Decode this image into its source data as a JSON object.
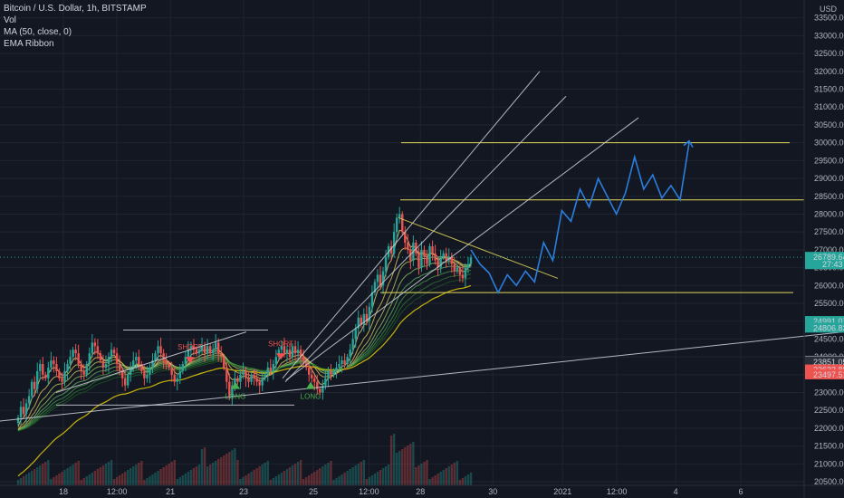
{
  "legend": {
    "symbol": "Bitcoin / U.S. Dollar, 1h, BITSTAMP",
    "volume": "Vol",
    "ma": "MA (50, close, 0)",
    "ribbon": "EMA Ribbon"
  },
  "currency": "USD",
  "chart_data": {
    "type": "candlestick",
    "title": "Bitcoin / U.S. Dollar, 1h, BITSTAMP",
    "ylim": [
      20400,
      34000
    ],
    "y_ticks": [
      20500,
      21000,
      21500,
      22000,
      22500,
      23000,
      23500,
      24000,
      24500,
      25000,
      25500,
      26000,
      26500,
      27000,
      27500,
      28000,
      28500,
      29000,
      29500,
      30000,
      30500,
      31000,
      31500,
      32000,
      32500,
      33000,
      33500
    ],
    "x_ticks": [
      "18",
      "12:00",
      "21",
      "23",
      "25",
      "12:00",
      "28",
      "30",
      "2021",
      "12:00",
      "4",
      "6"
    ],
    "current_price": 26789.64,
    "countdown": "27:43",
    "price_labels": [
      {
        "value": "24991.07",
        "price": 24991.07,
        "color": "#26a69a"
      },
      {
        "value": "24806.83",
        "price": 24806.83,
        "color": "#26a69a"
      },
      {
        "value": "23877.82",
        "price": 23877.82,
        "color": "#787b86"
      },
      {
        "value": "23851.05",
        "price": 23851.05,
        "color": "#2a2e39"
      },
      {
        "value": "23632.88",
        "price": 23632.88,
        "color": "#ef5350"
      },
      {
        "value": "23497.51",
        "price": 23497.51,
        "color": "#ef5350"
      }
    ],
    "horizontal_levels": [
      30000,
      28400,
      25800
    ],
    "projection": [
      27000,
      26600,
      26350,
      25800,
      26300,
      26000,
      26400,
      26100,
      27200,
      26700,
      28100,
      27800,
      28700,
      28200,
      29000,
      28500,
      28000,
      28600,
      29600,
      28700,
      29100,
      28450,
      28800,
      28400,
      30000
    ],
    "signals": [
      {
        "label": "SHORT",
        "color": "#ef5350"
      },
      {
        "label": "SHORT",
        "color": "#ef5350"
      },
      {
        "label": "LONG",
        "color": "#4caf50"
      },
      {
        "label": "LONG",
        "color": "#4caf50"
      }
    ],
    "series": [
      {
        "name": "BTC/USD",
        "values": [
          22300,
          22600,
          22400,
          22700,
          22900,
          23300,
          23100,
          23600,
          23800,
          23500,
          23400,
          23700,
          23900,
          23800,
          23600,
          23400,
          23300,
          23600,
          23800,
          24000,
          24200,
          24100,
          23800,
          23600,
          23500,
          23800,
          24100,
          24400,
          24300,
          24100,
          23900,
          23700,
          23800,
          24000,
          24200,
          24100,
          23800,
          23600,
          23400,
          23200,
          23500,
          23700,
          23900,
          24000,
          23800,
          23600,
          23400,
          23500,
          23700,
          23900,
          24100,
          24300,
          24100,
          23900,
          23800,
          23700,
          23500,
          23300,
          23400,
          23600,
          23800,
          24000,
          24200,
          24300,
          24200,
          24100,
          24200,
          24300,
          24100,
          24300,
          24100,
          24200,
          24400,
          24100,
          24000,
          23700,
          23300,
          22900,
          23200,
          23400,
          23300,
          23500,
          23600,
          23400,
          23300,
          23500,
          23400,
          23300,
          23200,
          23400,
          23500,
          23700,
          23600,
          23800,
          24000,
          24200,
          24300,
          24100,
          24200,
          24000,
          24300,
          24100,
          24200,
          24000,
          23900,
          23700,
          23500,
          23400,
          23300,
          23100,
          23000,
          23200,
          23400,
          23600,
          23500,
          23600,
          23700,
          23800,
          23900,
          23800,
          24000,
          24200,
          24500,
          24800,
          25100,
          24900,
          25200,
          25000,
          25400,
          25800,
          26100,
          26300,
          26000,
          26400,
          26800,
          27100,
          26900,
          27500,
          27900,
          28000,
          27500,
          27200,
          27000,
          26700,
          27200,
          26900,
          26500,
          27000,
          26800,
          26600,
          27100,
          26900,
          26700,
          26500,
          26800,
          26900,
          26700,
          26800,
          26600,
          26400,
          26500,
          26300,
          26200,
          26500,
          26600,
          26789.64
        ]
      }
    ]
  }
}
